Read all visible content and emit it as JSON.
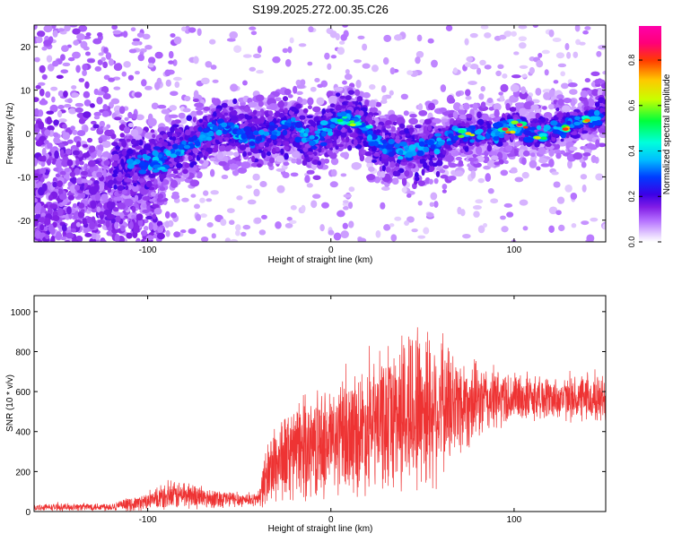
{
  "title": "S199.2025.272.00.35.C26",
  "colorscale": {
    "label": "Normalized spectral amplitude",
    "ticks": [
      "0.0",
      "0.2",
      "0.4",
      "0.6",
      "0.8"
    ],
    "stops": [
      "#ffffff",
      "#d9b3ff",
      "#9b30ff",
      "#0000ff",
      "#00bfff",
      "#00ffff",
      "#00ff00",
      "#ffff00",
      "#ffa500",
      "#ff0000",
      "#ff00aa"
    ]
  },
  "chart_data": [
    {
      "type": "heatmap",
      "title": "S199.2025.272.00.35.C26",
      "xlabel": "Height of straight line (km)",
      "ylabel": "Frequency (Hz)",
      "xlim": [
        -162,
        150
      ],
      "ylim": [
        -25,
        25
      ],
      "xticks": [
        -100,
        0,
        100
      ],
      "xtick_labels": [
        "-100",
        "0",
        "100"
      ],
      "yticks": [
        -20,
        -10,
        0,
        10,
        20
      ],
      "ytick_labels": [
        "-20",
        "-10",
        "0",
        "10",
        "20"
      ],
      "ridge": {
        "x": [
          -110,
          -100,
          -90,
          -80,
          -70,
          -60,
          -50,
          -40,
          -30,
          -20,
          -10,
          0,
          10,
          20,
          30,
          40,
          50,
          60,
          70,
          80,
          90,
          100,
          110,
          120,
          130,
          140,
          148
        ],
        "y": [
          -7,
          -7,
          -5,
          -3,
          -1,
          2,
          0,
          -1,
          1,
          2,
          -2,
          2,
          4,
          0,
          -3,
          -4,
          -3,
          -2,
          0,
          0,
          0,
          2,
          0,
          1,
          2,
          3,
          5
        ]
      },
      "hotspots": [
        {
          "x": 95,
          "y": 1,
          "amp": 0.9
        },
        {
          "x": 103,
          "y": 2,
          "amp": 0.95
        },
        {
          "x": 128,
          "y": 1,
          "amp": 0.85
        },
        {
          "x": 113,
          "y": -1,
          "amp": 0.7
        },
        {
          "x": 16,
          "y": 2,
          "amp": 0.6
        },
        {
          "x": -92,
          "y": -8,
          "amp": 0.4
        },
        {
          "x": 12,
          "y": 2,
          "amp": 0.65
        },
        {
          "x": 5,
          "y": 3,
          "amp": 0.55
        },
        {
          "x": 75,
          "y": 0,
          "amp": 0.75
        },
        {
          "x": 140,
          "y": 3,
          "amp": 0.8
        }
      ],
      "colorbar_range": [
        0.0,
        0.95
      ]
    },
    {
      "type": "line",
      "title": "",
      "xlabel": "Height of straight line (km)",
      "ylabel": "SNR (10 * v/v)",
      "xlim": [
        -162,
        150
      ],
      "ylim": [
        0,
        1080
      ],
      "xticks": [
        -100,
        0,
        100
      ],
      "xtick_labels": [
        "-100",
        "0",
        "100"
      ],
      "yticks": [
        0,
        200,
        400,
        600,
        800,
        1000
      ],
      "ytick_labels": [
        "0",
        "200",
        "400",
        "600",
        "800",
        "1000"
      ],
      "series": [
        {
          "name": "SNR",
          "color": "#ee3333",
          "envelope_x": [
            -162,
            -120,
            -110,
            -100,
            -90,
            -80,
            -70,
            -60,
            -50,
            -40,
            -35,
            -30,
            -20,
            -10,
            0,
            10,
            20,
            30,
            35,
            40,
            45,
            50,
            55,
            60,
            70,
            80,
            90,
            100,
            110,
            120,
            130,
            140,
            150
          ],
          "envelope_mean": [
            20,
            25,
            35,
            50,
            70,
            85,
            70,
            65,
            60,
            60,
            180,
            250,
            300,
            330,
            350,
            380,
            420,
            450,
            480,
            500,
            520,
            530,
            520,
            520,
            540,
            550,
            560,
            570,
            570,
            570,
            560,
            560,
            560
          ],
          "envelope_spread": [
            15,
            20,
            30,
            40,
            60,
            70,
            50,
            45,
            35,
            30,
            150,
            200,
            230,
            250,
            260,
            280,
            300,
            320,
            350,
            400,
            420,
            420,
            380,
            330,
            250,
            180,
            150,
            120,
            110,
            100,
            100,
            110,
            120
          ]
        }
      ]
    }
  ]
}
